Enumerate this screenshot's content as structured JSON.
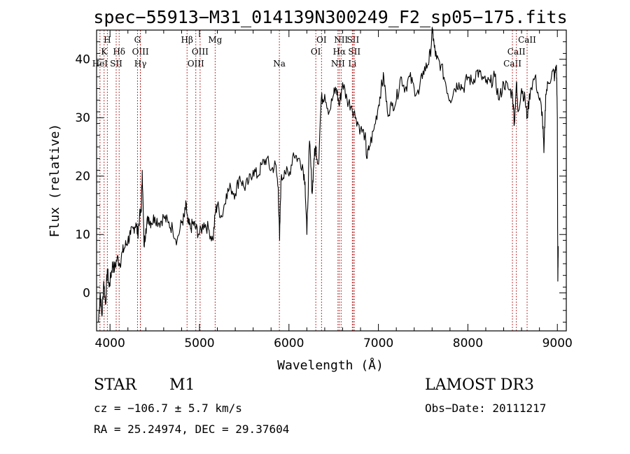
{
  "chart_data": {
    "type": "line",
    "title": "spec−55913−M31_014139N300249_F2_sp05−175.fits",
    "xlabel": "Wavelength (Å)",
    "ylabel": "Flux (relative)",
    "xlim": [
      3850,
      9100
    ],
    "ylim": [
      -6.5,
      45
    ],
    "xticks": [
      4000,
      5000,
      6000,
      7000,
      8000,
      9000
    ],
    "yticks": [
      0,
      10,
      20,
      30,
      40
    ],
    "spectrum": {
      "x": [
        3870,
        3890,
        3910,
        3930,
        3950,
        3970,
        3990,
        4010,
        4030,
        4050,
        4080,
        4110,
        4140,
        4170,
        4200,
        4230,
        4260,
        4290,
        4310,
        4330,
        4350,
        4360,
        4380,
        4400,
        4430,
        4460,
        4500,
        4550,
        4600,
        4650,
        4700,
        4750,
        4800,
        4830,
        4850,
        4870,
        4900,
        4930,
        4960,
        5000,
        5050,
        5100,
        5150,
        5180,
        5200,
        5250,
        5300,
        5350,
        5400,
        5450,
        5500,
        5550,
        5600,
        5650,
        5700,
        5750,
        5800,
        5850,
        5880,
        5895,
        5910,
        5950,
        6000,
        6050,
        6100,
        6150,
        6180,
        6200,
        6230,
        6260,
        6280,
        6300,
        6330,
        6360,
        6400,
        6450,
        6500,
        6530,
        6563,
        6600,
        6650,
        6700,
        6750,
        6800,
        6850,
        6870,
        6900,
        6950,
        7000,
        7030,
        7060,
        7100,
        7150,
        7200,
        7250,
        7300,
        7350,
        7400,
        7450,
        7500,
        7550,
        7580,
        7605,
        7625,
        7650,
        7700,
        7750,
        7800,
        7850,
        7900,
        7950,
        8000,
        8050,
        8100,
        8150,
        8200,
        8250,
        8300,
        8350,
        8400,
        8450,
        8500,
        8520,
        8542,
        8560,
        8600,
        8640,
        8662,
        8700,
        8750,
        8800,
        8830,
        8850,
        8870,
        8900,
        8950,
        8970,
        8990,
        9000,
        9005,
        9010
      ],
      "y": [
        -5,
        0,
        -4,
        2,
        -2,
        4,
        1,
        3,
        5,
        4,
        6,
        5,
        7,
        8,
        9,
        10,
        11,
        12,
        10,
        13,
        14,
        21,
        8,
        11,
        13,
        12,
        13,
        12,
        13,
        12,
        11,
        9,
        12,
        13,
        15,
        12,
        11,
        12,
        11,
        10,
        12,
        11,
        9,
        14,
        15,
        13,
        17,
        18,
        17,
        20,
        18,
        19,
        21,
        20,
        22,
        23,
        21,
        22,
        18,
        9,
        19,
        21,
        20,
        24,
        23,
        22,
        19,
        10,
        26,
        17,
        23,
        25,
        22,
        33,
        34,
        31,
        34,
        35,
        32,
        36,
        33,
        32,
        30,
        28,
        27,
        23,
        25,
        28,
        32,
        35,
        37,
        31,
        32,
        33,
        37,
        35,
        37,
        35,
        34,
        38,
        39,
        41,
        45,
        42,
        40,
        39,
        36,
        33,
        35,
        36,
        35,
        37,
        36,
        38,
        37,
        36,
        36,
        37,
        33,
        36,
        35,
        34,
        29,
        36,
        31,
        35,
        33,
        30,
        35,
        37,
        33,
        31,
        24,
        34,
        36,
        38,
        37,
        39,
        30,
        2,
        8
      ]
    },
    "lines": [
      {
        "label": "H",
        "x": 3970,
        "tier": 0
      },
      {
        "label": "K",
        "x": 3934,
        "tier": 1
      },
      {
        "label": "HeI",
        "x": 3888,
        "tier": 2
      },
      {
        "label": "SII",
        "x": 4069,
        "tier": 2
      },
      {
        "label": "Hδ",
        "x": 4102,
        "tier": 1
      },
      {
        "label": "G",
        "x": 4307,
        "tier": 0
      },
      {
        "label": "OIII",
        "x": 4340,
        "tier": 1
      },
      {
        "label": "Hγ",
        "x": 4340,
        "tier": 2
      },
      {
        "label": "Hβ",
        "x": 4861,
        "tier": 0
      },
      {
        "label": "OIII",
        "x": 4959,
        "tier": 2
      },
      {
        "label": "OIII",
        "x": 5007,
        "tier": 1
      },
      {
        "label": "Mg",
        "x": 5175,
        "tier": 0
      },
      {
        "label": "Na",
        "x": 5893,
        "tier": 2
      },
      {
        "label": "OI",
        "x": 6300,
        "tier": 1
      },
      {
        "label": "OI",
        "x": 6364,
        "tier": 0
      },
      {
        "label": "NII",
        "x": 6548,
        "tier": 2
      },
      {
        "label": "NII",
        "x": 6583,
        "tier": 0
      },
      {
        "label": "Hα",
        "x": 6563,
        "tier": 1
      },
      {
        "label": "SII",
        "x": 6717,
        "tier": 0
      },
      {
        "label": "SII",
        "x": 6731,
        "tier": 1
      },
      {
        "label": "Li",
        "x": 6708,
        "tier": 2
      },
      {
        "label": "CaII",
        "x": 8498,
        "tier": 2
      },
      {
        "label": "CaII",
        "x": 8542,
        "tier": 1
      },
      {
        "label": "CaII",
        "x": 8662,
        "tier": 0
      }
    ]
  },
  "info": {
    "class": "STAR",
    "subclass": "M1",
    "survey": "LAMOST DR3",
    "cz": "cz = −106.7 ± 5.7 km/s",
    "obs_date": "Obs−Date: 20111217",
    "coords": "RA =  25.24974, DEC =  29.37604"
  },
  "colors": {
    "spectrum": "#000000",
    "line_marker": "#b22222",
    "axes": "#000000"
  }
}
